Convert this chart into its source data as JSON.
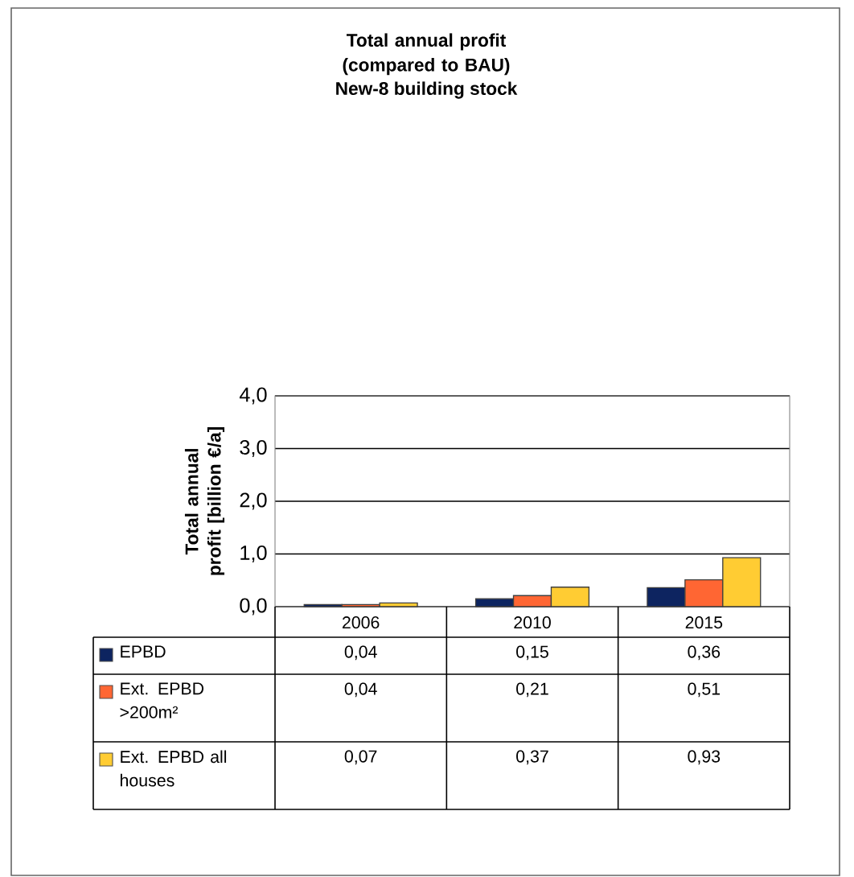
{
  "chart_data": {
    "type": "bar",
    "title": "Total annual profit (compared to BAU)",
    "subtitle": "New-8 building stock",
    "ylabel": "Total annual profit [billion €/a]",
    "categories": [
      "2006",
      "2010",
      "2015"
    ],
    "series": [
      {
        "name": "EPBD",
        "color": "#0d2460",
        "values": [
          0.04,
          0.15,
          0.36
        ],
        "value_labels": [
          "0,04",
          "0,15",
          "0,36"
        ]
      },
      {
        "name": "Ext. EPBD >200m²",
        "color": "#ff6633",
        "values": [
          0.04,
          0.21,
          0.51
        ],
        "value_labels": [
          "0,04",
          "0,21",
          "0,51"
        ]
      },
      {
        "name": "Ext. EPBD all houses",
        "color": "#ffcc33",
        "values": [
          0.07,
          0.37,
          0.93
        ],
        "value_labels": [
          "0,07",
          "0,37",
          "0,93"
        ]
      }
    ],
    "ylim": [
      0,
      4
    ],
    "yticks": [
      {
        "value": 0,
        "label": "0,0"
      },
      {
        "value": 1,
        "label": "1,0"
      },
      {
        "value": 2,
        "label": "2,0"
      },
      {
        "value": 3,
        "label": "3,0"
      },
      {
        "value": 4,
        "label": "4,0"
      }
    ],
    "grid": "y",
    "legend": "bottom"
  }
}
